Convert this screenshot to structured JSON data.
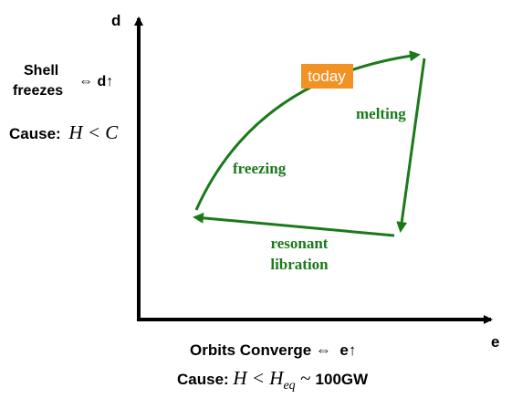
{
  "axes": {
    "y_label": "d",
    "x_label": "e"
  },
  "left_note": {
    "line1": "Shell",
    "line2": "freezes",
    "relation": "⇔ d↑",
    "cause_label": "Cause:",
    "cause_math": "H < C"
  },
  "cycle": {
    "today": "today",
    "melting": "melting",
    "freezing": "freezing",
    "resonant_line1": "resonant",
    "resonant_line2": "libration"
  },
  "bottom_note": {
    "line1": "Orbits Converge ⇔  e↑",
    "cause_label": "Cause:",
    "cause_math": "H < H",
    "cause_sub": "eq",
    "approx": " ~ ",
    "power": "100GW"
  }
}
